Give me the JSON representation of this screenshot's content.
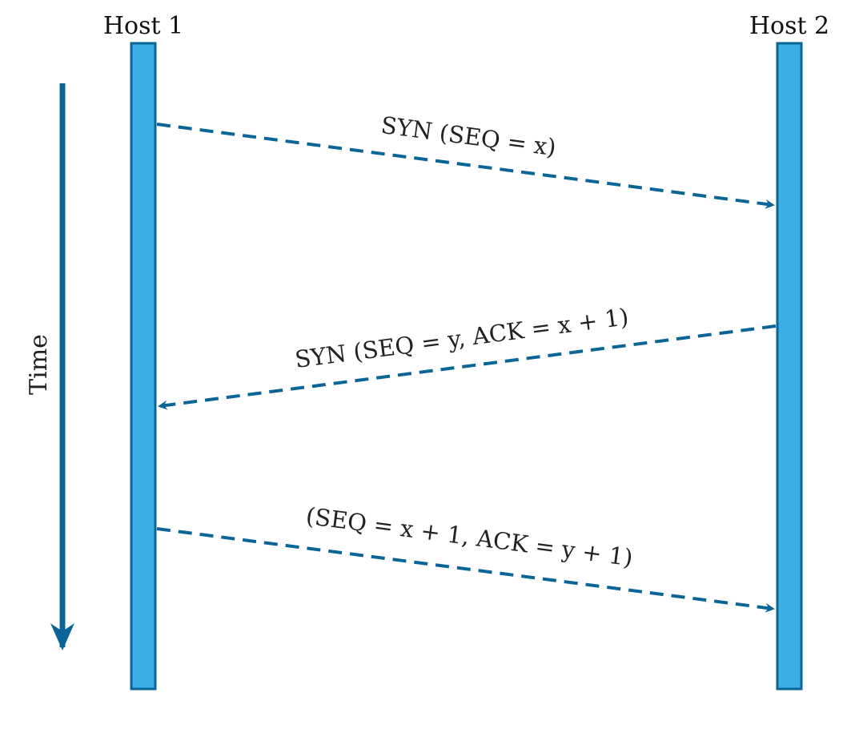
{
  "hosts": {
    "left": "Host 1",
    "right": "Host 2"
  },
  "time_axis": {
    "label": "Time"
  },
  "messages": [
    {
      "direction": "host1-to-host2",
      "label": "SYN (SEQ = x)"
    },
    {
      "direction": "host2-to-host1",
      "label": "SYN (SEQ = y, ACK = x + 1)"
    },
    {
      "direction": "host1-to-host2",
      "label": "(SEQ = x + 1, ACK = y + 1)"
    }
  ],
  "colors": {
    "lifeline_fill": "#3daee5",
    "lifeline_stroke": "#0a6597",
    "arrow": "#0a6597"
  }
}
